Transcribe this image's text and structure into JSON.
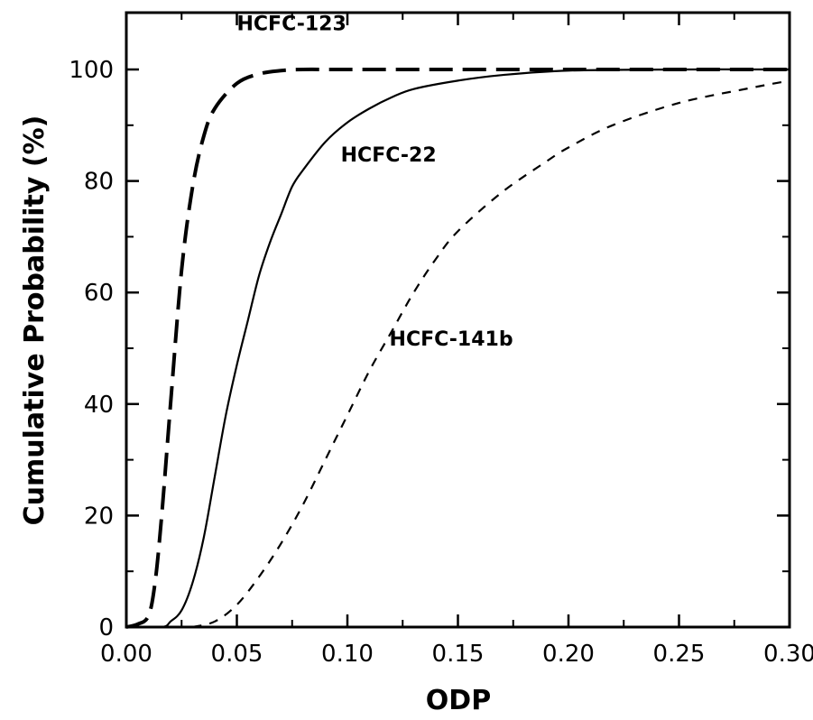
{
  "chart_data": {
    "type": "line",
    "title": "",
    "xlabel": "ODP",
    "ylabel": "Cumulative Probability (%)",
    "xlim": [
      0.0,
      0.3
    ],
    "ylim": [
      0,
      110
    ],
    "grid": false,
    "x_ticks": [
      0.0,
      0.05,
      0.1,
      0.15,
      0.2,
      0.25,
      0.3
    ],
    "x_tick_labels": [
      "0.00",
      "0.05",
      "0.10",
      "0.15",
      "0.20",
      "0.25",
      "0.30"
    ],
    "y_ticks": [
      0,
      20,
      40,
      60,
      80,
      100
    ],
    "y_tick_labels": [
      "0",
      "20",
      "40",
      "60",
      "80",
      "100"
    ],
    "series": [
      {
        "name": "HCFC-123",
        "style": "long-dash",
        "x": [
          0.0,
          0.005,
          0.01,
          0.013,
          0.016,
          0.02,
          0.025,
          0.03,
          0.035,
          0.04,
          0.05,
          0.06,
          0.07,
          0.08,
          0.1,
          0.2,
          0.3
        ],
        "y": [
          0,
          0.5,
          2,
          8,
          20,
          40,
          64,
          79,
          88,
          93,
          97.5,
          99.2,
          99.8,
          100,
          100,
          100,
          100
        ]
      },
      {
        "name": "HCFC-22",
        "style": "solid",
        "x": [
          0.0,
          0.016,
          0.02,
          0.025,
          0.03,
          0.035,
          0.04,
          0.045,
          0.05,
          0.055,
          0.06,
          0.065,
          0.07,
          0.075,
          0.08,
          0.09,
          0.1,
          0.11,
          0.12,
          0.13,
          0.15,
          0.17,
          0.2,
          0.25,
          0.3
        ],
        "y": [
          0,
          0,
          1,
          3,
          8,
          16,
          27,
          38,
          47,
          55,
          63,
          69,
          74,
          79,
          82,
          87,
          90.5,
          93,
          95,
          96.5,
          98,
          99,
          99.8,
          100,
          100
        ]
      },
      {
        "name": "HCFC-141b",
        "style": "short-dash",
        "x": [
          0.03,
          0.04,
          0.05,
          0.06,
          0.07,
          0.08,
          0.09,
          0.1,
          0.11,
          0.12,
          0.13,
          0.14,
          0.15,
          0.17,
          0.19,
          0.2,
          0.22,
          0.25,
          0.28,
          0.3
        ],
        "y": [
          0,
          1,
          4,
          9,
          15,
          22,
          30,
          38,
          46,
          53,
          60,
          66,
          71,
          78,
          83.5,
          86,
          90,
          94,
          96.5,
          98
        ]
      }
    ],
    "annotations": [
      "HCFC-123",
      "HCFC-22",
      "HCFC-141b"
    ]
  }
}
